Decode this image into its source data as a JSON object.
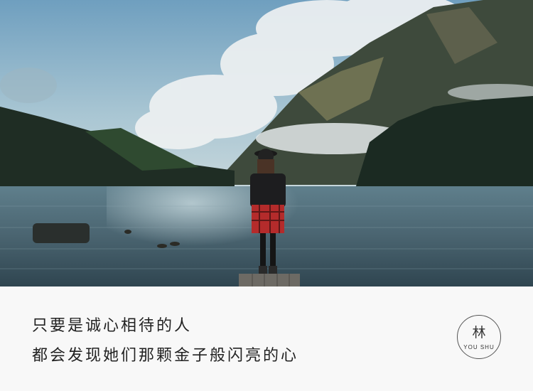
{
  "caption": {
    "line1": "只要是诚心相待的人",
    "line2": "都会发现她们那颗金子般闪亮的心"
  },
  "logo": {
    "glyph": "林",
    "text": "YOU SHU"
  },
  "scene": {
    "description_icon": "lake-landscape-photo",
    "sky_color": "#8fb4cc",
    "water_color": "#4a6470",
    "forest_color": "#1f2d24"
  }
}
